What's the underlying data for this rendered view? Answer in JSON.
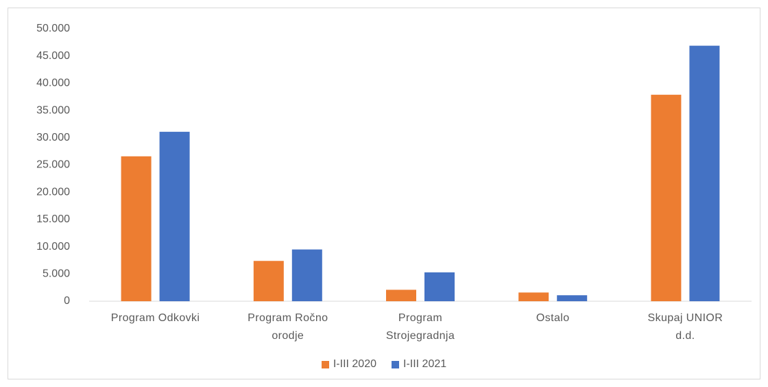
{
  "chart_data": {
    "type": "bar",
    "categories": [
      "Program Odkovki",
      "Program Ročno orodje",
      "Program Strojegradnja",
      "Ostalo",
      "Skupaj UNIOR d.d."
    ],
    "series": [
      {
        "name": "I-III 2020",
        "color": "#ed7d31",
        "values": [
          26600,
          7400,
          2100,
          1600,
          37900
        ]
      },
      {
        "name": "I-III 2021",
        "color": "#4472c4",
        "values": [
          31100,
          9500,
          5300,
          1100,
          46900
        ]
      }
    ],
    "ylim": [
      0,
      50000
    ],
    "yticks": [
      0,
      {
        "value": 5000,
        "label": "5.000"
      },
      {
        "value": 10000,
        "label": "10.000"
      },
      {
        "value": 15000,
        "label": "15.000"
      },
      {
        "value": 20000,
        "label": "20.000"
      },
      {
        "value": 25000,
        "label": "25.000"
      },
      {
        "value": 30000,
        "label": "30.000"
      },
      {
        "value": 35000,
        "label": "35.000"
      },
      {
        "value": 40000,
        "label": "40.000"
      },
      {
        "value": 45000,
        "label": "45.000"
      },
      {
        "value": 50000,
        "label": "50.000"
      }
    ],
    "legend": "bottom"
  }
}
